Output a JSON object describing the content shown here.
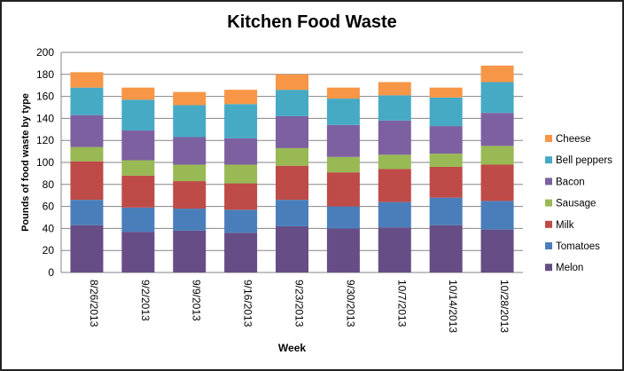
{
  "chart_data": {
    "type": "bar",
    "stacked": true,
    "title": "Kitchen Food Waste",
    "xlabel": "Week",
    "ylabel": "Pounds of food waste by type",
    "ylim": [
      0,
      200
    ],
    "yticks": [
      0,
      20,
      40,
      60,
      80,
      100,
      120,
      140,
      160,
      180,
      200
    ],
    "grid": true,
    "legend_position": "right",
    "categories": [
      "8/26/2013",
      "9/2/2013",
      "9/9/2013",
      "9/16/2013",
      "9/23/2013",
      "9/30/2013",
      "10/7/2013",
      "10/14/2013",
      "10/28/2013"
    ],
    "series": [
      {
        "name": "Melon",
        "color": "#664d85",
        "values": [
          43,
          37,
          38,
          36,
          42,
          40,
          41,
          43,
          39
        ]
      },
      {
        "name": "Tomatoes",
        "color": "#4a7ebb",
        "values": [
          23,
          22,
          20,
          21,
          24,
          20,
          23,
          25,
          26
        ]
      },
      {
        "name": "Milk",
        "color": "#be4b48",
        "values": [
          35,
          29,
          25,
          24,
          31,
          31,
          30,
          28,
          33
        ]
      },
      {
        "name": "Sausage",
        "color": "#98b954",
        "values": [
          13,
          14,
          15,
          17,
          16,
          14,
          13,
          12,
          17
        ]
      },
      {
        "name": "Bacon",
        "color": "#7d60a0",
        "values": [
          29,
          27,
          25,
          24,
          29,
          29,
          31,
          25,
          30
        ]
      },
      {
        "name": "Bell peppers",
        "color": "#46aac5",
        "values": [
          25,
          28,
          29,
          31,
          24,
          24,
          23,
          26,
          28
        ]
      },
      {
        "name": "Cheese",
        "color": "#f79646",
        "values": [
          14,
          11,
          12,
          13,
          14,
          10,
          12,
          9,
          15
        ]
      }
    ]
  }
}
